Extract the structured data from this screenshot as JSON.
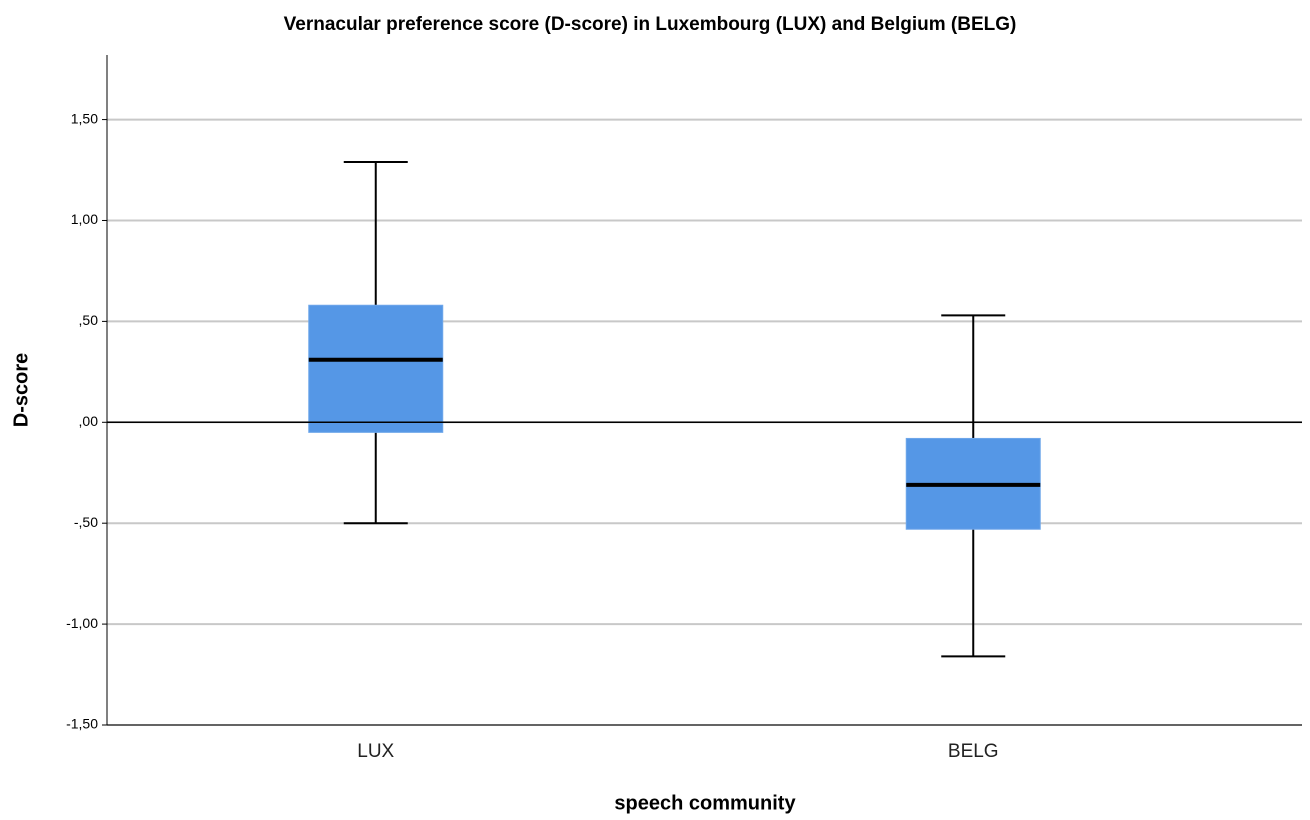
{
  "chart_data": {
    "type": "box",
    "title": "Vernacular preference score (D-score) in Luxembourg (LUX) and Belgium (BELG)",
    "x_label": "speech community",
    "y_label": "D-score",
    "categories": [
      "LUX",
      "BELG"
    ],
    "color": "#5597e6",
    "boxes": [
      {
        "whisker_low": -0.5,
        "q1": -0.05,
        "median": 0.31,
        "q3": 0.58,
        "whisker_high": 1.29
      },
      {
        "whisker_low": -1.16,
        "q1": -0.53,
        "median": -0.31,
        "q3": -0.08,
        "whisker_high": 0.53
      }
    ],
    "reference_line": 0,
    "ylim": [
      -1.5,
      1.82
    ],
    "yticks": [
      {
        "value": -1.5,
        "label": "-1,50"
      },
      {
        "value": -1,
        "label": "-1,00"
      },
      {
        "value": -0.5,
        "label": "-,50"
      },
      {
        "value": 0,
        "label": ",00"
      },
      {
        "value": 0.5,
        "label": ",50"
      },
      {
        "value": 1,
        "label": "1,00"
      },
      {
        "value": 1.5,
        "label": "1,50"
      }
    ],
    "grid": true
  }
}
